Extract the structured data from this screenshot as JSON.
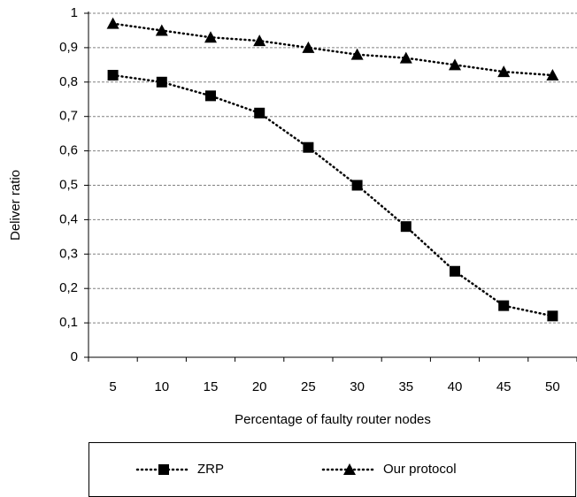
{
  "chart_data": {
    "type": "line",
    "x_label": "Percentage of faulty router nodes",
    "y_label": "Deliver ratio",
    "categories": [
      "5",
      "10",
      "15",
      "20",
      "25",
      "30",
      "35",
      "40",
      "45",
      "50"
    ],
    "series": [
      {
        "name": "ZRP",
        "color": "#000000",
        "marker": "square",
        "values": [
          0.82,
          0.8,
          0.76,
          0.71,
          0.61,
          0.5,
          0.38,
          0.25,
          0.15,
          0.12
        ]
      },
      {
        "name": "Our protocol",
        "color": "#000000",
        "marker": "triangle",
        "values": [
          0.97,
          0.95,
          0.93,
          0.92,
          0.9,
          0.88,
          0.87,
          0.85,
          0.83,
          0.82
        ]
      }
    ],
    "ylim": [
      0,
      1
    ],
    "yticks": [
      0,
      {
        "value": 0.1,
        "label": "0,1"
      },
      {
        "value": 0.2,
        "label": "0,2"
      },
      {
        "value": 0.3,
        "label": "0,3"
      },
      {
        "value": 0.4,
        "label": "0,4"
      },
      {
        "value": 0.5,
        "label": "0,5"
      },
      {
        "value": 0.6,
        "label": "0,6"
      },
      {
        "value": 0.7,
        "label": "0,7"
      },
      {
        "value": 0.8,
        "label": "0,8"
      },
      {
        "value": 0.9,
        "label": "0,9"
      },
      1
    ],
    "grid": true,
    "legend": "bottom"
  }
}
